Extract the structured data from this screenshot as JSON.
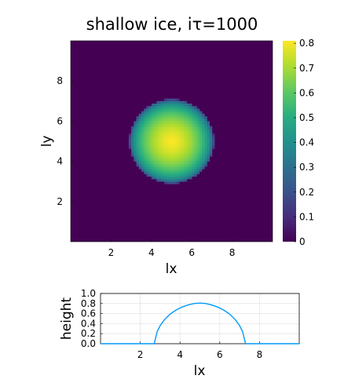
{
  "chart_data": [
    {
      "type": "heatmap",
      "title": "shallow ice, iτ=1000",
      "xlabel": "lx",
      "ylabel": "ly",
      "xlim": [
        0,
        10
      ],
      "ylim": [
        0,
        10
      ],
      "xticks": [
        "2",
        "4",
        "6",
        "8"
      ],
      "yticks": [
        "2",
        "4",
        "6",
        "8"
      ],
      "colormap": "viridis",
      "clim": [
        0,
        0.81
      ],
      "colorbar_ticks": [
        "0",
        "0.1",
        "0.2",
        "0.3",
        "0.4",
        "0.5",
        "0.6",
        "0.7",
        "0.8"
      ],
      "grid_cells": 80,
      "dome": {
        "center_x": 5.0,
        "center_y": 5.0,
        "radius": 2.1,
        "peak": 0.81
      },
      "background_value": 0
    },
    {
      "type": "line",
      "xlabel": "lx",
      "ylabel": "height",
      "xlim": [
        0,
        10
      ],
      "ylim": [
        0,
        1.0
      ],
      "xticks": [
        "2",
        "4",
        "6",
        "8"
      ],
      "yticks": [
        "0.0",
        "0.2",
        "0.4",
        "0.6",
        "0.8",
        "1.0"
      ],
      "grid": true,
      "color": "#009af9",
      "x": [
        0,
        1,
        2,
        2.7,
        2.85,
        3.0,
        3.2,
        3.5,
        3.8,
        4.1,
        4.4,
        4.7,
        5.0,
        5.3,
        5.6,
        5.9,
        6.2,
        6.5,
        6.8,
        7.0,
        7.15,
        7.3,
        8,
        9,
        10
      ],
      "y": [
        0,
        0,
        0,
        0,
        0.24,
        0.36,
        0.47,
        0.59,
        0.67,
        0.73,
        0.77,
        0.8,
        0.81,
        0.8,
        0.77,
        0.73,
        0.67,
        0.59,
        0.47,
        0.36,
        0.24,
        0,
        0,
        0,
        0
      ]
    }
  ]
}
